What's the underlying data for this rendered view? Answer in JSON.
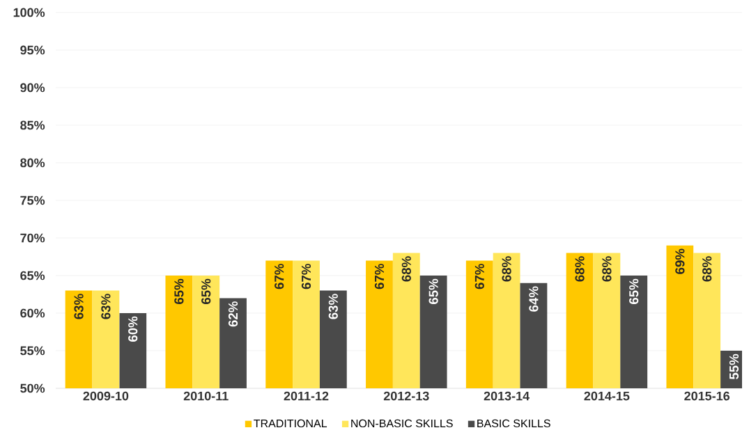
{
  "chart_data": {
    "type": "bar",
    "categories": [
      "2009-10",
      "2010-11",
      "2011-12",
      "2012-13",
      "2013-14",
      "2014-15",
      "2015-16"
    ],
    "series": [
      {
        "name": "TRADITIONAL",
        "color": "#ffc800",
        "values": [
          63,
          65,
          67,
          67,
          67,
          68,
          69
        ],
        "value_labels": [
          "63%",
          "65%",
          "67%",
          "67%",
          "67%",
          "68%",
          "69%"
        ]
      },
      {
        "name": "NON-BASIC SKILLS",
        "color": "#ffe65a",
        "values": [
          63,
          65,
          67,
          68,
          68,
          68,
          68
        ],
        "value_labels": [
          "63%",
          "65%",
          "67%",
          "68%",
          "68%",
          "68%",
          "68%"
        ]
      },
      {
        "name": "BASIC SKILLS",
        "color": "#4a4a4a",
        "values": [
          60,
          62,
          63,
          65,
          64,
          65,
          55
        ],
        "value_labels": [
          "60%",
          "62%",
          "63%",
          "65%",
          "64%",
          "65%",
          "55%"
        ]
      }
    ],
    "ylim": [
      50,
      100
    ],
    "yticks": [
      {
        "value": 50,
        "label": "50%"
      },
      {
        "value": 55,
        "label": "55%"
      },
      {
        "value": 60,
        "label": "60%"
      },
      {
        "value": 65,
        "label": "65%"
      },
      {
        "value": 70,
        "label": "70%"
      },
      {
        "value": 75,
        "label": "75%"
      },
      {
        "value": 80,
        "label": "80%"
      },
      {
        "value": 85,
        "label": "85%"
      },
      {
        "value": 90,
        "label": "90%"
      },
      {
        "value": 95,
        "label": "95%"
      },
      {
        "value": 100,
        "label": "100%"
      }
    ],
    "grid": "y",
    "legend": "bottom"
  }
}
